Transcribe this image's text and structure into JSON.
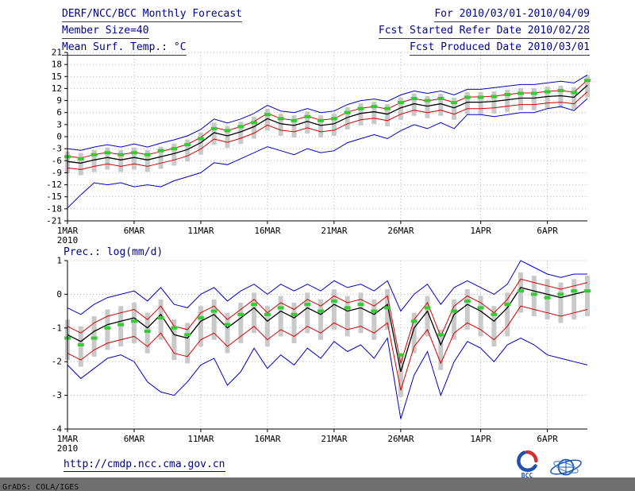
{
  "header": {
    "title": "DERF/NCC/BCC Monthly Forecast",
    "member_size": "Member Size=40",
    "variable_label": "Mean Surf. Temp.: °C",
    "forecast_range": "For 2010/03/01-2010/04/09",
    "refer_date": "Fcst Started Refer Date 2010/02/28",
    "produced_date": "Fcst Produced Date 2010/03/01"
  },
  "footer": {
    "url": "http://cmdp.ncc.cma.gov.cn",
    "grads_credit": "GrADS: COLA/IGES",
    "bcc_logo_label": "BCC"
  },
  "colors": {
    "envelope_blue": "#0000c8",
    "quartile_red": "#d40000",
    "mean_black": "#000000",
    "obs_green": "#33cc33",
    "spread_gray": "#c9c9c9",
    "header_text": "#00008b"
  },
  "chart_data": [
    {
      "type": "line",
      "title": "Mean Surf. Temp.: °C",
      "ylabel": "°C",
      "ylim": [
        -21,
        21
      ],
      "ytick_step": 3,
      "n_days": 40,
      "grid": true,
      "legend": "none",
      "x_ticks": [
        {
          "day": 1,
          "label": "1MAR",
          "sub": "2010"
        },
        {
          "day": 6,
          "label": "6MAR"
        },
        {
          "day": 11,
          "label": "11MAR"
        },
        {
          "day": 16,
          "label": "16MAR"
        },
        {
          "day": 21,
          "label": "21MAR"
        },
        {
          "day": 26,
          "label": "26MAR"
        },
        {
          "day": 32,
          "label": "1APR"
        },
        {
          "day": 37,
          "label": "6APR"
        }
      ],
      "series": [
        {
          "name": "max-member-envelope",
          "color": "#0000c8",
          "width": 1,
          "values": [
            -3.0,
            -3.4,
            -2.6,
            -2.0,
            -2.6,
            -1.8,
            -2.6,
            -1.6,
            -0.8,
            0.2,
            1.8,
            4.4,
            3.4,
            4.4,
            5.8,
            7.8,
            6.4,
            6.0,
            7.0,
            6.0,
            6.4,
            8.0,
            9.0,
            9.4,
            8.8,
            10.4,
            11.4,
            10.8,
            11.4,
            10.4,
            11.8,
            11.8,
            12.2,
            12.6,
            13.0,
            13.0,
            13.4,
            13.8,
            13.4,
            15.4
          ]
        },
        {
          "name": "upper-quartile",
          "color": "#d40000",
          "width": 1,
          "values": [
            -4.9,
            -5.3,
            -4.5,
            -3.9,
            -4.5,
            -3.9,
            -4.5,
            -3.7,
            -2.9,
            -1.9,
            -0.2,
            2.3,
            1.5,
            2.5,
            3.8,
            5.8,
            4.5,
            4.1,
            5.1,
            4.1,
            4.5,
            6.1,
            7.1,
            7.5,
            6.9,
            8.5,
            9.5,
            8.9,
            9.5,
            8.5,
            9.9,
            9.9,
            10.1,
            10.5,
            10.9,
            10.9,
            11.3,
            11.5,
            11.1,
            14.1
          ]
        },
        {
          "name": "ensemble-mean",
          "color": "#000000",
          "width": 1.3,
          "values": [
            -6.2,
            -6.6,
            -5.8,
            -5.2,
            -5.8,
            -5.2,
            -5.8,
            -5.0,
            -4.2,
            -3.2,
            -1.5,
            1.0,
            0.2,
            1.2,
            2.5,
            4.5,
            3.2,
            2.8,
            3.8,
            2.8,
            3.2,
            4.8,
            5.8,
            6.2,
            5.6,
            7.2,
            8.2,
            7.6,
            8.2,
            7.2,
            8.6,
            8.6,
            8.8,
            9.2,
            9.6,
            9.6,
            10.0,
            10.2,
            9.8,
            12.8
          ]
        },
        {
          "name": "lower-quartile",
          "color": "#d40000",
          "width": 1,
          "values": [
            -7.8,
            -8.2,
            -7.4,
            -6.8,
            -7.4,
            -6.8,
            -7.4,
            -6.6,
            -5.8,
            -4.8,
            -3.1,
            -0.6,
            -1.4,
            -0.4,
            0.9,
            2.9,
            1.6,
            1.2,
            2.2,
            1.2,
            1.6,
            3.2,
            4.2,
            4.6,
            4.0,
            5.6,
            6.6,
            6.0,
            6.6,
            5.6,
            7.0,
            7.0,
            7.2,
            7.6,
            8.0,
            8.0,
            8.4,
            8.6,
            8.2,
            11.2
          ]
        },
        {
          "name": "min-member-envelope",
          "color": "#0000c8",
          "width": 1,
          "values": [
            -17.8,
            -14.5,
            -11.5,
            -12.0,
            -11.5,
            -12.5,
            -12.0,
            -12.5,
            -11.0,
            -10.0,
            -9.0,
            -6.5,
            -7.0,
            -5.5,
            -4.0,
            -2.5,
            -3.5,
            -4.5,
            -3.0,
            -4.0,
            -3.5,
            -1.5,
            -0.5,
            0.5,
            -0.5,
            1.5,
            3.0,
            2.0,
            3.5,
            2.0,
            5.5,
            5.5,
            5.0,
            5.5,
            6.0,
            6.0,
            7.0,
            7.5,
            6.5,
            9.5
          ]
        },
        {
          "name": "observation-dashes",
          "color": "#33cc33",
          "width": 4,
          "style": "dash-marks",
          "values": [
            -5.0,
            -5.5,
            -4.5,
            -4.0,
            -4.5,
            -4.0,
            -4.5,
            -3.5,
            -3.0,
            -2.0,
            -0.5,
            2.0,
            1.5,
            2.5,
            3.5,
            5.5,
            4.5,
            4.0,
            5.0,
            4.0,
            4.5,
            6.0,
            7.0,
            7.5,
            7.0,
            8.5,
            9.5,
            9.0,
            9.5,
            8.5,
            9.8,
            9.8,
            10.0,
            10.5,
            10.8,
            10.8,
            11.2,
            11.5,
            11.0,
            14.0
          ]
        }
      ],
      "spread_bars": {
        "color": "#c9c9c9",
        "top": [
          -3.7,
          -4.1,
          -3.3,
          -2.7,
          -3.3,
          -2.7,
          -3.3,
          -2.5,
          -1.7,
          -0.7,
          1.0,
          3.5,
          2.7,
          3.7,
          5.0,
          7.0,
          5.7,
          5.3,
          6.3,
          5.3,
          5.7,
          7.3,
          8.3,
          8.7,
          8.1,
          9.7,
          10.7,
          10.1,
          10.7,
          9.7,
          11.1,
          11.1,
          11.3,
          11.7,
          12.1,
          12.1,
          12.5,
          12.7,
          12.3,
          15.3
        ],
        "bottom": [
          -9.2,
          -9.6,
          -8.8,
          -8.2,
          -8.8,
          -8.2,
          -8.8,
          -8.0,
          -7.2,
          -6.2,
          -4.5,
          -2.0,
          -2.8,
          -1.8,
          -0.5,
          1.5,
          0.2,
          -0.2,
          0.8,
          -0.2,
          0.2,
          1.8,
          2.8,
          3.2,
          2.6,
          4.2,
          5.2,
          4.6,
          5.2,
          4.2,
          5.6,
          5.6,
          5.8,
          6.2,
          6.6,
          6.6,
          7.0,
          7.2,
          6.8,
          9.8
        ]
      }
    },
    {
      "type": "line",
      "title": "Prec.: log(mm/d)",
      "ylabel": "log(mm/d)",
      "ylim": [
        -4,
        1
      ],
      "ytick_step": 1,
      "n_days": 40,
      "grid": true,
      "legend": "none",
      "x_ticks": [
        {
          "day": 1,
          "label": "1MAR",
          "sub": "2010"
        },
        {
          "day": 6,
          "label": "6MAR"
        },
        {
          "day": 11,
          "label": "11MAR"
        },
        {
          "day": 16,
          "label": "16MAR"
        },
        {
          "day": 21,
          "label": "21MAR"
        },
        {
          "day": 26,
          "label": "26MAR"
        },
        {
          "day": 32,
          "label": "1APR"
        },
        {
          "day": 37,
          "label": "6APR"
        }
      ],
      "series": [
        {
          "name": "max-member-envelope",
          "color": "#0000c8",
          "width": 1,
          "values": [
            -0.4,
            -0.6,
            -0.3,
            -0.1,
            0.0,
            0.1,
            -0.2,
            0.2,
            -0.3,
            -0.4,
            0.0,
            0.2,
            -0.2,
            0.1,
            0.3,
            0.0,
            0.3,
            0.1,
            0.3,
            0.1,
            0.4,
            0.2,
            0.3,
            0.1,
            0.4,
            -0.5,
            0.0,
            0.3,
            -0.3,
            0.2,
            0.4,
            0.2,
            0.0,
            0.3,
            1.0,
            0.8,
            0.6,
            0.5,
            0.6,
            0.6
          ]
        },
        {
          "name": "upper-quartile",
          "color": "#d40000",
          "width": 1,
          "values": [
            -0.95,
            -1.15,
            -0.85,
            -0.65,
            -0.55,
            -0.45,
            -0.75,
            -0.35,
            -0.95,
            -1.05,
            -0.55,
            -0.35,
            -0.75,
            -0.45,
            -0.15,
            -0.55,
            -0.25,
            -0.45,
            -0.15,
            -0.35,
            -0.05,
            -0.25,
            -0.15,
            -0.35,
            -0.05,
            -2.05,
            -0.75,
            -0.25,
            -1.25,
            -0.35,
            -0.05,
            -0.25,
            -0.55,
            -0.15,
            0.45,
            0.35,
            0.25,
            0.15,
            0.25,
            0.35
          ]
        },
        {
          "name": "ensemble-mean",
          "color": "#000000",
          "width": 1.3,
          "values": [
            -1.2,
            -1.4,
            -1.1,
            -0.9,
            -0.8,
            -0.7,
            -1.0,
            -0.6,
            -1.2,
            -1.3,
            -0.8,
            -0.6,
            -1.0,
            -0.7,
            -0.4,
            -0.8,
            -0.5,
            -0.7,
            -0.4,
            -0.6,
            -0.3,
            -0.5,
            -0.4,
            -0.6,
            -0.3,
            -2.3,
            -1.0,
            -0.5,
            -1.5,
            -0.6,
            -0.3,
            -0.5,
            -0.8,
            -0.4,
            0.2,
            0.1,
            0.0,
            -0.1,
            0.0,
            0.1
          ]
        },
        {
          "name": "lower-quartile",
          "color": "#d40000",
          "width": 1,
          "values": [
            -1.75,
            -1.95,
            -1.65,
            -1.45,
            -1.35,
            -1.25,
            -1.55,
            -1.15,
            -1.75,
            -1.85,
            -1.35,
            -1.15,
            -1.55,
            -1.25,
            -0.95,
            -1.35,
            -1.05,
            -1.25,
            -0.95,
            -1.15,
            -0.85,
            -1.05,
            -0.95,
            -1.15,
            -0.85,
            -2.85,
            -1.55,
            -1.05,
            -2.05,
            -1.15,
            -0.85,
            -1.05,
            -1.35,
            -0.95,
            -0.35,
            -0.45,
            -0.55,
            -0.65,
            -0.55,
            -0.45
          ]
        },
        {
          "name": "min-member-envelope",
          "color": "#0000c8",
          "width": 1,
          "values": [
            -2.1,
            -2.5,
            -2.2,
            -1.9,
            -1.8,
            -2.0,
            -2.6,
            -2.9,
            -3.0,
            -2.6,
            -2.1,
            -1.9,
            -2.7,
            -2.3,
            -1.6,
            -2.2,
            -1.8,
            -2.1,
            -1.6,
            -1.9,
            -1.4,
            -1.7,
            -1.5,
            -1.9,
            -1.3,
            -3.7,
            -2.4,
            -1.7,
            -3.0,
            -2.0,
            -1.4,
            -1.6,
            -2.0,
            -1.5,
            -1.3,
            -1.5,
            -1.8,
            -1.9,
            -2.0,
            -2.1
          ]
        },
        {
          "name": "observation-dashes",
          "color": "#33cc33",
          "width": 4,
          "style": "dash-marks",
          "values": [
            -1.3,
            -1.5,
            -1.3,
            -1.0,
            -0.9,
            -0.8,
            -1.1,
            -0.7,
            -1.0,
            -1.2,
            -0.7,
            -0.5,
            -0.9,
            -0.6,
            -0.3,
            -0.6,
            -0.4,
            -0.6,
            -0.3,
            -0.5,
            -0.2,
            -0.4,
            -0.3,
            -0.5,
            -0.4,
            -1.8,
            -0.8,
            -0.4,
            -1.2,
            -0.5,
            -0.2,
            -0.4,
            -0.6,
            -0.3,
            0.1,
            0.0,
            -0.1,
            0.0,
            0.1,
            0.1
          ]
        }
      ],
      "spread_bars": {
        "color": "#c9c9c9",
        "top": [
          -0.75,
          -0.95,
          -0.65,
          -0.45,
          -0.35,
          -0.25,
          -0.55,
          -0.15,
          -0.75,
          -0.85,
          -0.35,
          -0.15,
          -0.55,
          -0.25,
          0.05,
          -0.35,
          -0.05,
          -0.25,
          0.05,
          -0.15,
          0.15,
          -0.05,
          0.05,
          -0.15,
          0.15,
          -1.85,
          -0.55,
          -0.05,
          -1.05,
          -0.15,
          0.15,
          -0.05,
          -0.35,
          0.05,
          0.65,
          0.55,
          0.45,
          0.35,
          0.45,
          0.55
        ],
        "bottom": [
          -1.95,
          -2.15,
          -1.85,
          -1.65,
          -1.55,
          -1.45,
          -1.75,
          -1.35,
          -1.95,
          -2.05,
          -1.55,
          -1.35,
          -1.75,
          -1.45,
          -1.15,
          -1.55,
          -1.25,
          -1.45,
          -1.15,
          -1.35,
          -1.05,
          -1.25,
          -1.15,
          -1.35,
          -1.05,
          -3.05,
          -1.75,
          -1.25,
          -2.25,
          -1.35,
          -1.05,
          -1.25,
          -1.55,
          -1.25,
          -0.55,
          -0.65,
          -0.75,
          -0.85,
          -0.75,
          -0.65
        ]
      }
    }
  ]
}
